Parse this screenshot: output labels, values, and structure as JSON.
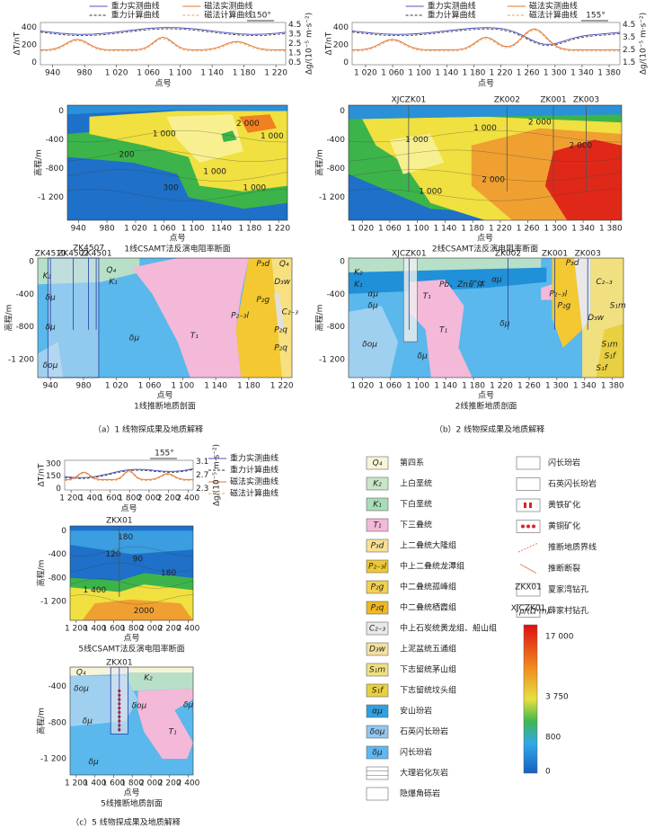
{
  "panels": {
    "a": {
      "profile": {
        "legend": [
          "重力实测曲线",
          "磁法实测曲线",
          "重力计算曲线",
          "磁法计算曲线"
        ],
        "azimuth": "150°",
        "y_label": "ΔT/nT",
        "y2_label": "Δg/(10⁻⁵ m·s⁻²)",
        "yticks": [
          "400",
          "200",
          "0"
        ],
        "y2ticks": [
          "4.5",
          "3.5",
          "2.5",
          "1.5",
          "0.5"
        ],
        "xticks": [
          "940",
          "980",
          "1 020",
          "1 060",
          "1 100",
          "1 140",
          "1 180",
          "1 220"
        ],
        "x_label": "点号"
      },
      "resistivity": {
        "labels": [
          "1 000",
          "2 000",
          "1 000",
          "200",
          "300",
          "1 000",
          "1 000"
        ],
        "drills": [],
        "yticks": [
          "0",
          "-400",
          "-800",
          "-1 200"
        ],
        "y_label": "高程/m",
        "xticks": [
          "940",
          "980",
          "1 020",
          "1 060",
          "1 100",
          "1140",
          "1 180",
          "1 220"
        ],
        "x_label": "点号",
        "title": "1线CSAMT法反演电阻率断面"
      },
      "geology": {
        "labels": [
          "K₂",
          "Q₄",
          "K₁",
          "δμ",
          "δμ",
          "δμ",
          "δομ",
          "T₁",
          "P₂₋₃l",
          "P₃d",
          "Q₄",
          "D₃w",
          "P₂g",
          "C₂₋₃",
          "P₂q",
          "P₂q"
        ],
        "drills": [
          "ZK4510",
          "ZK4502",
          "ZK4507",
          "ZK4501"
        ],
        "yticks": [
          "0",
          "-400",
          "-800",
          "-1 200"
        ],
        "y_label": "高程/m",
        "xticks": [
          "940",
          "980",
          "1 020",
          "1 060",
          "1 100",
          "1 140",
          "1 180",
          "1 220"
        ],
        "x_label": "点号",
        "title": "1线推断地质剖面"
      },
      "caption": "（a）1 线物探成果及地质解释"
    },
    "b": {
      "profile": {
        "legend": [
          "重力实测曲线",
          "磁法实测曲线",
          "重力计算曲线",
          "磁法计算曲线"
        ],
        "azimuth": "155°",
        "y_label": "ΔT/nT",
        "y2_label": "Δg/(10⁻⁵ m·s⁻²)",
        "yticks": [
          "400",
          "200",
          "0"
        ],
        "y2ticks": [
          "4.5",
          "3.5",
          "2.5",
          "1.5"
        ],
        "xticks": [
          "1 020",
          "1 060",
          "1 100",
          "1 140",
          "1 180",
          "1 220",
          "1 260",
          "1 300",
          "1 340",
          "1 380"
        ],
        "x_label": "点号"
      },
      "resistivity": {
        "labels": [
          "1 000",
          "1 000",
          "2 000",
          "2 000",
          "2 000",
          "1 000"
        ],
        "drills": [
          "XJCZK01",
          "ZK002",
          "ZK001",
          "ZK003"
        ],
        "yticks": [
          "0",
          "-400",
          "-800",
          "-1 200"
        ],
        "y_label": "高程/m",
        "xticks": [
          "1 020",
          "1 060",
          "1 100",
          "1 140",
          "1 180",
          "1 220",
          "1 260",
          "1 300",
          "1 340",
          "1 380"
        ],
        "x_label": "点号",
        "title": "2线CSAMT法反演电阻率断面"
      },
      "geology": {
        "labels": [
          "K₂",
          "K₁",
          "αμ",
          "δμ",
          "δομ",
          "Pb、Zn矿体",
          "T₁",
          "T₁",
          "δμ",
          "δμ",
          "αμ",
          "P₂₋₃l",
          "P₂g",
          "P₃d",
          "C₂₋₃",
          "D₃w",
          "S₁m",
          "S₁m",
          "S₁f",
          "S₁f"
        ],
        "drills": [
          "XJCZK01",
          "ZK002",
          "ZK001",
          "ZK003"
        ],
        "yticks": [
          "0",
          "-400",
          "-800",
          "-1 200"
        ],
        "y_label": "高程/m",
        "xticks": [
          "1 020",
          "1 060",
          "1 100",
          "1 140",
          "1 180",
          "1 220",
          "1 260",
          "1 300",
          "1 340",
          "1 380"
        ],
        "x_label": "点号",
        "title": "2线推断地质剖面"
      },
      "caption": "（b）2 线物探成果及地质解释"
    },
    "c": {
      "profile": {
        "legend": [
          "重力实测曲线",
          "重力计算曲线",
          "磁法实测曲线",
          "磁法计算曲线"
        ],
        "azimuth": "155°",
        "y_label": "ΔT/nT",
        "y2_label": "Δg/(10⁻⁵ m·s⁻²)",
        "yticks": [
          "300",
          "150",
          "0"
        ],
        "y2ticks": [
          "3.1",
          "2.7",
          "2.3"
        ],
        "xticks": [
          "1 200",
          "1 400",
          "1 600",
          "1 800",
          "2 000",
          "2 200",
          "2 400"
        ],
        "x_label": "点号"
      },
      "resistivity": {
        "labels": [
          "120",
          "180",
          "90",
          "180",
          "1 400",
          "2000"
        ],
        "drills": [
          "ZKX01"
        ],
        "yticks": [
          "0",
          "-400",
          "-800",
          "-1 200"
        ],
        "y_label": "高程/m",
        "xticks": [
          "1 200",
          "1 400",
          "1 600",
          "1 800",
          "2 000",
          "2 200",
          "2 400"
        ],
        "x_label": "点号",
        "title": "5线CSAMT法反演电阻率断面"
      },
      "geology": {
        "labels": [
          "Q₄",
          "K₂",
          "δομ",
          "δομ",
          "T₁",
          "δμ",
          "δμ",
          "δμ"
        ],
        "drills": [
          "ZKX01"
        ],
        "yticks": [
          "-400",
          "-800",
          "-1 200"
        ],
        "y_label": "高程/m",
        "xticks": [
          "1 200",
          "1 400",
          "1 600",
          "1 800",
          "2 000",
          "2 200",
          "2 400"
        ],
        "x_label": "点号",
        "title": "5线推断地质剖面"
      },
      "caption": "（c）5 线物探成果及地质解释"
    }
  },
  "legend": {
    "units": [
      {
        "symbol": "Q₄",
        "name": "第四系"
      },
      {
        "symbol": "K₂",
        "name": "上白垩统"
      },
      {
        "symbol": "K₁",
        "name": "下白垩统"
      },
      {
        "symbol": "T₁",
        "name": "下三叠统"
      },
      {
        "symbol": "P₃d",
        "name": "上二叠统大隆组"
      },
      {
        "symbol": "P₂₋₃l",
        "name": "中上二叠统龙潭组"
      },
      {
        "symbol": "P₂g",
        "name": "中二叠统孤峰组"
      },
      {
        "symbol": "P₂q",
        "name": "中二叠统栖霞组"
      },
      {
        "symbol": "C₂₋₃",
        "name": "中上石炭统黄龙组、船山组"
      },
      {
        "symbol": "D₃w",
        "name": "上泥盆统五通组"
      },
      {
        "symbol": "S₁m",
        "name": "下志留统茅山组"
      },
      {
        "symbol": "S₁f",
        "name": "下志留统坟头组"
      },
      {
        "symbol": "αμ",
        "name": "安山玢岩"
      },
      {
        "symbol": "δομ",
        "name": "石英闪长玢岩"
      },
      {
        "symbol": "δμ",
        "name": "闪长玢岩"
      },
      {
        "name": "大理岩化灰岩"
      },
      {
        "name": "隐爆角砾岩"
      }
    ],
    "symbols": [
      {
        "name": "闪长玢岩"
      },
      {
        "name": "石英闪长玢岩"
      },
      {
        "name": "黄铁矿化"
      },
      {
        "name": "黄铜矿化"
      },
      {
        "name": "推断地质界线"
      },
      {
        "name": "推断断裂"
      },
      {
        "symbol": "ZKX01",
        "name": "夏家湾钻孔"
      },
      {
        "symbol": "XJCZK01",
        "name": "薛家村钻孔"
      }
    ],
    "colorbar": {
      "title": "ρ/(Ω·m)",
      "ticks": [
        "17 000",
        "3 750",
        "800",
        "0"
      ]
    }
  }
}
